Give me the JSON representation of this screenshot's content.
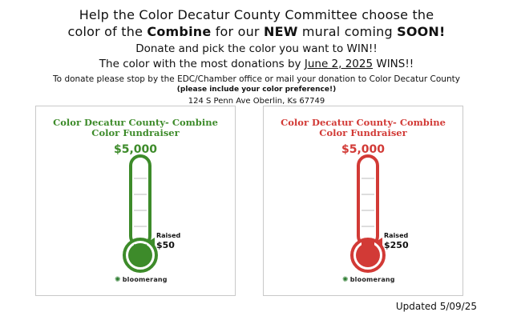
{
  "header": {
    "line1": "Help the Color Decatur County Committee choose the",
    "line2_pre": "color of the ",
    "line2_b1": "Combine",
    "line2_mid": " for our ",
    "line2_b2": "NEW",
    "line2_mid2": " mural coming ",
    "line2_b3": "SOON!",
    "line3": "Donate and pick the color you want to WIN!!",
    "line4_pre": "The color with the most donations by ",
    "line4_date": "June 2, 2025",
    "line4_post": " WINS!!",
    "line5": "To donate please stop by the EDC/Chamber office or mail your donation to Color Decatur County",
    "line6": "(please include your color preference!)",
    "line7": "124 S Penn Ave Oberlin, Ks 67749"
  },
  "cards": [
    {
      "title1": "Color Decatur County- Combine",
      "title2": "Color Fundraiser",
      "goal": "$5,000",
      "raised_label": "Raised",
      "raised_value": "$50",
      "raised_amount": 50,
      "goal_amount": 5000,
      "color": "#3d8b2a",
      "brand": "bloomerang",
      "brand_icon": "bloomerang-logo-icon"
    },
    {
      "title1": "Color Decatur County- Combine",
      "title2": "Color Fundraiser",
      "goal": "$5,000",
      "raised_label": "Raised",
      "raised_value": "$250",
      "raised_amount": 250,
      "goal_amount": 5000,
      "color": "#d23a36",
      "brand": "bloomerang",
      "brand_icon": "bloomerang-logo-icon"
    }
  ],
  "footer": {
    "updated": "Updated 5/09/25"
  }
}
